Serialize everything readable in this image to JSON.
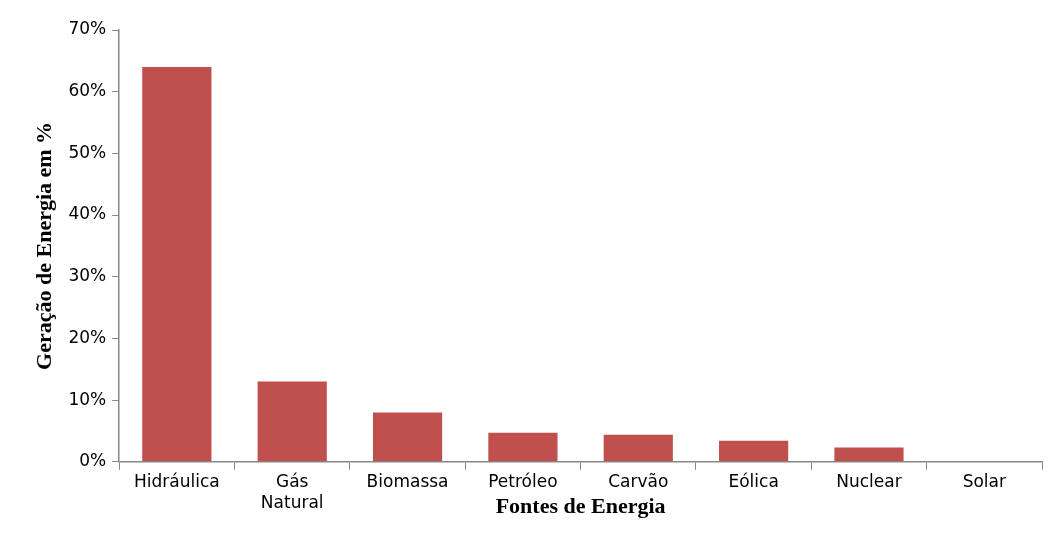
{
  "chart_data": {
    "type": "bar",
    "xlabel": "Fontes de Energia",
    "ylabel": "Geração de Energia em %",
    "categories": [
      "Hidráulica",
      "Gás Natural",
      "Biomassa",
      "Petróleo",
      "Carvão",
      "Eólica",
      "Nuclear",
      "Solar"
    ],
    "values": [
      64,
      13,
      8,
      4.7,
      4.4,
      3.4,
      2.3,
      0
    ],
    "color": "#c0504d",
    "ylim": [
      0,
      70
    ],
    "yticks": [
      {
        "value": 0,
        "label": "0%"
      },
      {
        "value": 10,
        "label": "10%"
      },
      {
        "value": 20,
        "label": "20%"
      },
      {
        "value": 30,
        "label": "30%"
      },
      {
        "value": 40,
        "label": "40%"
      },
      {
        "value": 50,
        "label": "50%"
      },
      {
        "value": 60,
        "label": "60%"
      },
      {
        "value": 70,
        "label": "70%"
      }
    ],
    "grid": false,
    "legend": false
  }
}
